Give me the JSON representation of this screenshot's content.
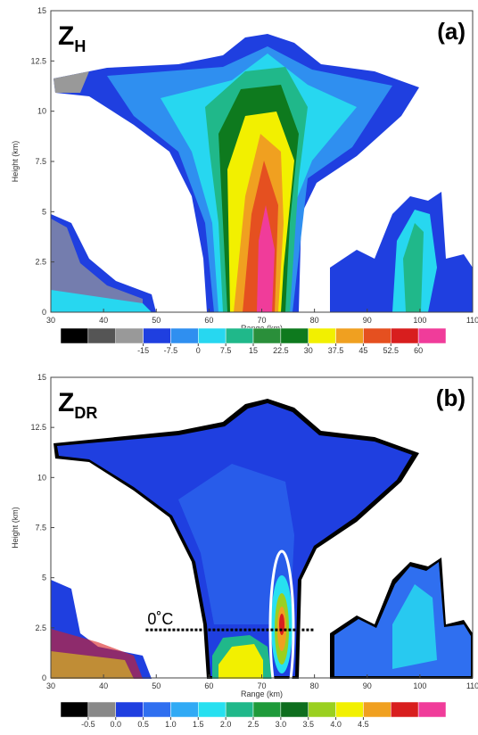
{
  "chart_data": [
    {
      "type": "radar",
      "panel": "(a)",
      "field": "Z",
      "field_sub": "H",
      "xlabel": "Range (km)",
      "ylabel": "Height (km)",
      "xlim": [
        30,
        110
      ],
      "xticks": [
        30,
        40,
        50,
        60,
        70,
        80,
        90,
        100,
        110
      ],
      "ylim": [
        0,
        15
      ],
      "yticks": [
        0,
        2.5,
        5,
        7.5,
        10,
        12.5,
        15
      ],
      "colorbar": {
        "colors": [
          "#000000",
          "#555555",
          "#999999",
          "#1f3fe0",
          "#2f8ff0",
          "#27d7f0",
          "#20b88a",
          "#2a8f3a",
          "#0e7a1e",
          "#f2f000",
          "#f0a020",
          "#e55020",
          "#d81e1e",
          "#f03c9a"
        ],
        "ticks": [
          -15,
          -7.5,
          0,
          7.5,
          15,
          22.5,
          30,
          37.5,
          45,
          52.5,
          60
        ]
      }
    },
    {
      "type": "radar",
      "panel": "(b)",
      "field": "Z",
      "field_sub": "DR",
      "xlabel": "Range (km)",
      "ylabel": "Height (km)",
      "xlim": [
        30,
        110
      ],
      "xticks": [
        30,
        40,
        50,
        60,
        70,
        80,
        90,
        100,
        110
      ],
      "ylim": [
        0,
        15
      ],
      "yticks": [
        0,
        2.5,
        5,
        7.5,
        10,
        12.5,
        15
      ],
      "colorbar": {
        "colors": [
          "#000000",
          "#888888",
          "#1f3fe0",
          "#2f6ff0",
          "#30aaf5",
          "#27e0f0",
          "#20b88a",
          "#1e9a3a",
          "#0e6e1e",
          "#9ad020",
          "#f2f000",
          "#f0a020",
          "#d81e1e",
          "#f03c9a"
        ],
        "ticks": [
          -0.5,
          {
            "value": 0,
            "label": "0.0"
          },
          0.5,
          {
            "value": 1,
            "label": "1.0"
          },
          1.5,
          {
            "value": 2,
            "label": "2.0"
          },
          2.5,
          {
            "value": 3,
            "label": "3.0"
          },
          3.5,
          {
            "value": 4,
            "label": "4.0"
          },
          4.5
        ]
      },
      "annotations": [
        {
          "text": "0˚C",
          "y": 2.4,
          "x": [
            48,
            80
          ]
        }
      ]
    }
  ]
}
